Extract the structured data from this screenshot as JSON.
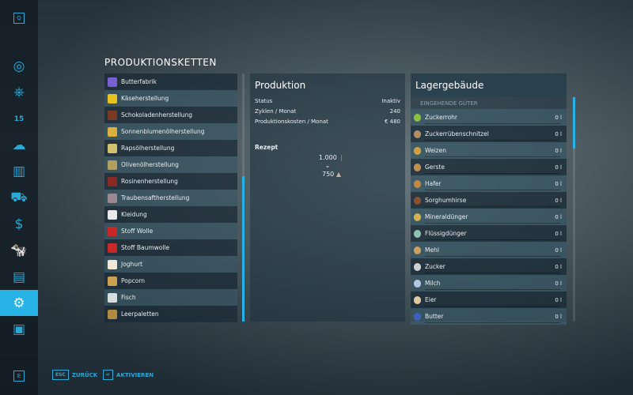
{
  "sidebar": {
    "top_key": "Q",
    "bottom_key": "E",
    "items": [
      {
        "name": "map",
        "icon": "◎"
      },
      {
        "name": "vehicles",
        "icon": "⎈"
      },
      {
        "name": "calendar",
        "icon": "15"
      },
      {
        "name": "weather",
        "icon": "☁"
      },
      {
        "name": "statistics",
        "icon": "▥"
      },
      {
        "name": "tractor",
        "icon": "⛟"
      },
      {
        "name": "finances",
        "icon": "$"
      },
      {
        "name": "animals",
        "icon": "🐄"
      },
      {
        "name": "contracts",
        "icon": "▤"
      },
      {
        "name": "production",
        "icon": "⚙",
        "selected": true
      },
      {
        "name": "help",
        "icon": "▣"
      }
    ]
  },
  "title": "PRODUKTIONSKETTEN",
  "productions": [
    {
      "label": "Butterfabrik",
      "color": "#7a5fd0"
    },
    {
      "label": "Käseherstellung",
      "color": "#e6c21e"
    },
    {
      "label": "Schokoladenherstellung",
      "color": "#7a3a24"
    },
    {
      "label": "Sonnenblumenölherstellung",
      "color": "#d8b040"
    },
    {
      "label": "Rapsölherstellung",
      "color": "#d0c070"
    },
    {
      "label": "Olivenölherstellung",
      "color": "#b0a060"
    },
    {
      "label": "Rosinenherstellung",
      "color": "#8a2a24"
    },
    {
      "label": "Traubensaftherstellung",
      "color": "#9a8a90"
    },
    {
      "label": "Kleidung",
      "color": "#e8e8e8"
    },
    {
      "label": "Stoff Wolle",
      "color": "#c82828"
    },
    {
      "label": "Stoff Baumwolle",
      "color": "#c82828"
    },
    {
      "label": "Joghurt",
      "color": "#efe8d8"
    },
    {
      "label": "Popcorn",
      "color": "#c8a050"
    },
    {
      "label": "Fisch",
      "color": "#d8dde0"
    },
    {
      "label": "Leerpaletten",
      "color": "#b08a40"
    }
  ],
  "production": {
    "title": "Produktion",
    "rows": [
      {
        "k": "Status",
        "v": "Inaktiv"
      },
      {
        "k": "Zyklen / Monat",
        "v": "240"
      },
      {
        "k": "Produktionskosten / Monat",
        "v": "€ 480"
      }
    ],
    "recipe_label": "Rezept",
    "input": "1.000",
    "output": "750"
  },
  "storage": {
    "title": "Lagergebäude",
    "section": "EINGEHENDE GÜTER",
    "items": [
      {
        "label": "Zuckerrohr",
        "value": "0 l",
        "color": "#8ac040"
      },
      {
        "label": "Zuckerrübenschnitzel",
        "value": "0 l",
        "color": "#b09060"
      },
      {
        "label": "Weizen",
        "value": "0 l",
        "color": "#d0a040"
      },
      {
        "label": "Gerste",
        "value": "0 l",
        "color": "#c09050"
      },
      {
        "label": "Hafer",
        "value": "0 l",
        "color": "#c08840"
      },
      {
        "label": "Sorghumhirse",
        "value": "0 l",
        "color": "#8a5030"
      },
      {
        "label": "Mineraldünger",
        "value": "0 l",
        "color": "#d0b050"
      },
      {
        "label": "Flüssigdünger",
        "value": "0 l",
        "color": "#90c0b0"
      },
      {
        "label": "Mehl",
        "value": "0 l",
        "color": "#c8a060"
      },
      {
        "label": "Zucker",
        "value": "0 l",
        "color": "#d0d0d0"
      },
      {
        "label": "Milch",
        "value": "0 l",
        "color": "#b0c8e0"
      },
      {
        "label": "Eier",
        "value": "0 l",
        "color": "#e0c8a0"
      },
      {
        "label": "Butter",
        "value": "0 l",
        "color": "#4060c0"
      }
    ]
  },
  "footer": {
    "back_key": "ESC",
    "back": "ZURÜCK",
    "activate_key": "↵",
    "activate": "AKTIVIEREN"
  }
}
